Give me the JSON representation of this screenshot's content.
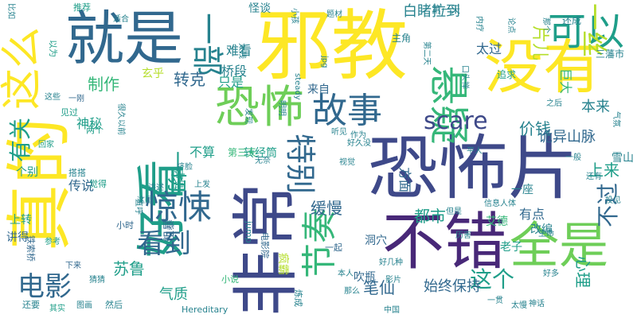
{
  "palette": {
    "yellow": "#fde725",
    "lime": "#b5de2b",
    "green": "#6ece58",
    "green2": "#35b779",
    "teal": "#1f9e89",
    "teal2": "#26828e",
    "blue": "#31688e",
    "indigo": "#3e4989",
    "purple": "#482878",
    "dark": "#440154"
  },
  "words": [
    {
      "text": "邪教",
      "color": "yellow"
    },
    {
      "text": "真的",
      "color": "yellow"
    },
    {
      "text": "恐怖片",
      "color": "indigo"
    },
    {
      "text": "非常",
      "color": "indigo"
    },
    {
      "text": "不错",
      "color": "purple"
    },
    {
      "text": "就是",
      "color": "blue"
    },
    {
      "text": "没有",
      "color": "yellow"
    },
    {
      "text": "全是",
      "color": "green"
    },
    {
      "text": "好看",
      "color": "teal"
    },
    {
      "text": "恐怖",
      "color": "green"
    },
    {
      "text": "这么",
      "color": "yellow"
    },
    {
      "text": "悬疑",
      "color": "green2"
    },
    {
      "text": "可以",
      "color": "teal"
    },
    {
      "text": "故事",
      "color": "blue"
    },
    {
      "text": "惊悚",
      "color": "blue"
    },
    {
      "text": "节奏",
      "color": "green2"
    },
    {
      "text": "一部",
      "color": "teal2"
    },
    {
      "text": "特别",
      "color": "blue"
    },
    {
      "text": "电影",
      "color": "blue"
    },
    {
      "text": "看到",
      "color": "blue"
    },
    {
      "text": "scare",
      "color": "indigo"
    },
    {
      "text": "有关",
      "color": "teal"
    },
    {
      "text": "一切",
      "color": "teal"
    },
    {
      "text": "这个",
      "color": "teal"
    },
    {
      "text": "不过",
      "color": "blue"
    },
    {
      "text": "一丝",
      "color": "lime"
    },
    {
      "text": "片儿",
      "color": "lime"
    },
    {
      "text": "制作",
      "color": "green2"
    },
    {
      "text": "转克",
      "color": "blue"
    },
    {
      "text": "价钱",
      "color": "teal2"
    },
    {
      "text": "诡异山脉",
      "color": "blue"
    },
    {
      "text": "苏鲁",
      "color": "teal"
    },
    {
      "text": "心理",
      "color": "teal"
    },
    {
      "text": "笔仙",
      "color": "blue"
    },
    {
      "text": "始终保持",
      "color": "blue"
    },
    {
      "text": "都市",
      "color": "teal"
    },
    {
      "text": "缓慢",
      "color": "blue"
    },
    {
      "text": "上来",
      "color": "teal"
    },
    {
      "text": "气质",
      "color": "teal"
    },
    {
      "text": "神秘",
      "color": "teal"
    },
    {
      "text": "桥段",
      "color": "teal2"
    },
    {
      "text": "难看",
      "color": "teal2"
    },
    {
      "text": "只是",
      "color": "teal"
    },
    {
      "text": "白睹拉到",
      "color": "teal2"
    },
    {
      "text": "太过",
      "color": "blue"
    },
    {
      "text": "巨大",
      "color": "green2"
    },
    {
      "text": "本来",
      "color": "teal2"
    },
    {
      "text": "方面",
      "color": "blue"
    },
    {
      "text": "不算",
      "color": "teal"
    },
    {
      "text": "传说",
      "color": "blue"
    },
    {
      "text": "有点",
      "color": "blue"
    },
    {
      "text": "改编",
      "color": "teal2"
    },
    {
      "text": "老子",
      "color": "teal"
    },
    {
      "text": "一座",
      "color": "teal2"
    },
    {
      "text": "雪山",
      "color": "teal2"
    },
    {
      "text": "艾德",
      "color": "green2"
    },
    {
      "text": "吹瓶",
      "color": "blue"
    },
    {
      "text": "洞穴",
      "color": "blue"
    },
    {
      "text": "疯霸",
      "color": "lime"
    },
    {
      "text": "粗暴",
      "color": "blue"
    },
    {
      "text": "简单",
      "color": "teal"
    },
    {
      "text": "讲得",
      "color": "blue"
    },
    {
      "text": "上转",
      "color": "teal"
    },
    {
      "text": "个别",
      "color": "teal"
    },
    {
      "text": "转经筒",
      "color": "teal"
    },
    {
      "text": "第三天",
      "color": "green2"
    },
    {
      "text": "第一天",
      "color": "teal2"
    },
    {
      "text": "玄乎",
      "color": "lime"
    },
    {
      "text": "来自",
      "color": "blue"
    },
    {
      "text": "怪谈",
      "color": "teal2"
    },
    {
      "text": "主角",
      "color": "teal2"
    },
    {
      "text": "追求",
      "color": "teal"
    },
    {
      "text": "三藩市",
      "color": "teal2"
    },
    {
      "text": "还成",
      "color": "teal2"
    },
    {
      "text": "推荐",
      "color": "teal"
    },
    {
      "text": "以为",
      "color": "teal"
    },
    {
      "text": "小时",
      "color": "blue"
    },
    {
      "text": "然后",
      "color": "teal2"
    },
    {
      "text": "还要",
      "color": "teal2"
    },
    {
      "text": "铁索桥",
      "color": "blue"
    },
    {
      "text": "搭搭",
      "color": "teal2"
    },
    {
      "text": "觉得",
      "color": "teal"
    },
    {
      "text": "两个",
      "color": "teal"
    },
    {
      "text": "见过",
      "color": "teal"
    },
    {
      "text": "这些",
      "color": "teal2"
    },
    {
      "text": "一刚",
      "color": "blue"
    },
    {
      "text": "回家",
      "color": "teal"
    },
    {
      "text": "图画",
      "color": "teal2"
    },
    {
      "text": "下来",
      "color": "blue"
    },
    {
      "text": "参考",
      "color": "teal"
    },
    {
      "text": "其实",
      "color": "teal"
    },
    {
      "text": "小说",
      "color": "green2"
    },
    {
      "text": "Hereditary",
      "color": "teal2"
    },
    {
      "text": "jump",
      "color": "teal2"
    },
    {
      "text": "电影院",
      "color": "blue"
    },
    {
      "text": "一起",
      "color": "blue"
    },
    {
      "text": "炼成",
      "color": "teal2"
    },
    {
      "text": "那么",
      "color": "teal2"
    },
    {
      "text": "本人",
      "color": "teal2"
    },
    {
      "text": "影片",
      "color": "teal2"
    },
    {
      "text": "好多",
      "color": "teal2"
    },
    {
      "text": "一贯",
      "color": "teal2"
    },
    {
      "text": "神话",
      "color": "teal2"
    },
    {
      "text": "历害",
      "color": "teal2"
    },
    {
      "text": "生命",
      "color": "teal2"
    },
    {
      "text": "但是",
      "color": "teal2"
    },
    {
      "text": "好久没",
      "color": "teal2"
    },
    {
      "text": "视觉",
      "color": "teal2"
    },
    {
      "text": "信息人体",
      "color": "teal2"
    },
    {
      "text": "还有",
      "color": "teal2"
    },
    {
      "text": "作为",
      "color": "teal2"
    },
    {
      "text": "听见",
      "color": "teal2"
    },
    {
      "text": "口头禅",
      "color": "teal2"
    },
    {
      "text": "第二天",
      "color": "teal2"
    },
    {
      "text": "内疗",
      "color": "teal2"
    },
    {
      "text": "论点",
      "color": "teal2"
    },
    {
      "text": "那个",
      "color": "teal2"
    },
    {
      "text": "之后",
      "color": "teal2"
    },
    {
      "text": "一般",
      "color": "teal2"
    },
    {
      "text": "气氛",
      "color": "teal2"
    },
    {
      "text": "steady",
      "color": "teal2"
    },
    {
      "text": "jpg",
      "color": "teal2"
    },
    {
      "text": "题材",
      "color": "teal2"
    },
    {
      "text": "小孩",
      "color": "teal2"
    },
    {
      "text": "太残",
      "color": "teal2"
    },
    {
      "text": "明明",
      "color": "teal2"
    },
    {
      "text": "发现",
      "color": "teal2"
    },
    {
      "text": "上发",
      "color": "teal2"
    },
    {
      "text": "挤脸",
      "color": "teal2"
    },
    {
      "text": "讲述",
      "color": "teal2"
    },
    {
      "text": "这是",
      "color": "teal2"
    },
    {
      "text": "很久以前",
      "color": "teal2"
    },
    {
      "text": "直呼",
      "color": "teal2"
    },
    {
      "text": "无奈",
      "color": "teal2"
    },
    {
      "text": "比如",
      "color": "teal2"
    },
    {
      "text": "平人",
      "color": "teal2"
    },
    {
      "text": "投见",
      "color": "teal2"
    },
    {
      "text": "适合",
      "color": "teal2"
    },
    {
      "text": "猜猜",
      "color": "teal2"
    },
    {
      "text": "好几种",
      "color": "teal2"
    },
    {
      "text": "中国",
      "color": "teal2"
    },
    {
      "text": "太慢",
      "color": "teal2"
    }
  ]
}
